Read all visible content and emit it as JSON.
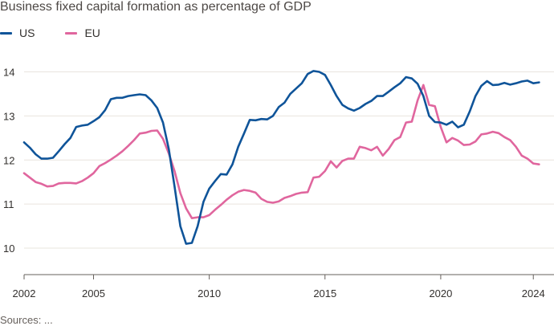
{
  "chart_data": {
    "type": "line",
    "title": "Business fixed capital formation as percentage of GDP",
    "xlabel": "",
    "ylabel": "",
    "xlim": [
      2002.0,
      2024.2
    ],
    "ylim": [
      9.4,
      14.5
    ],
    "y_ticks": [
      10,
      11,
      12,
      13,
      14
    ],
    "x_ticks": [
      2002,
      2005,
      2010,
      2015,
      2020,
      2024
    ],
    "grid": "horizontal",
    "legend_position": "top-left",
    "series": [
      {
        "name": "US",
        "color": "#0f5499",
        "x": [
          2002.0,
          2002.25,
          2002.5,
          2002.75,
          2003.0,
          2003.25,
          2003.5,
          2003.75,
          2004.0,
          2004.25,
          2004.5,
          2004.75,
          2005.0,
          2005.25,
          2005.5,
          2005.75,
          2006.0,
          2006.25,
          2006.5,
          2006.75,
          2007.0,
          2007.25,
          2007.5,
          2007.75,
          2008.0,
          2008.25,
          2008.5,
          2008.75,
          2009.0,
          2009.25,
          2009.5,
          2009.75,
          2010.0,
          2010.25,
          2010.5,
          2010.75,
          2011.0,
          2011.25,
          2011.5,
          2011.75,
          2012.0,
          2012.25,
          2012.5,
          2012.75,
          2013.0,
          2013.25,
          2013.5,
          2013.75,
          2014.0,
          2014.25,
          2014.5,
          2014.75,
          2015.0,
          2015.25,
          2015.5,
          2015.75,
          2016.0,
          2016.25,
          2016.5,
          2016.75,
          2017.0,
          2017.25,
          2017.5,
          2017.75,
          2018.0,
          2018.25,
          2018.5,
          2018.75,
          2019.0,
          2019.25,
          2019.5,
          2019.75,
          2020.0,
          2020.25,
          2020.5,
          2020.75,
          2021.0,
          2021.25,
          2021.5,
          2021.75,
          2022.0,
          2022.25,
          2022.5,
          2022.75,
          2023.0,
          2023.25,
          2023.5,
          2023.75,
          2024.0,
          2024.25
        ],
        "values": [
          12.4,
          12.28,
          12.13,
          12.03,
          12.03,
          12.05,
          12.2,
          12.36,
          12.5,
          12.75,
          12.78,
          12.8,
          12.88,
          12.97,
          13.13,
          13.38,
          13.41,
          13.41,
          13.45,
          13.47,
          13.49,
          13.47,
          13.35,
          13.18,
          12.85,
          12.25,
          11.4,
          10.5,
          10.1,
          10.12,
          10.5,
          11.05,
          11.35,
          11.52,
          11.68,
          11.67,
          11.9,
          12.3,
          12.6,
          12.91,
          12.9,
          12.93,
          12.92,
          13.0,
          13.2,
          13.3,
          13.5,
          13.62,
          13.74,
          13.95,
          14.02,
          14.0,
          13.93,
          13.7,
          13.45,
          13.25,
          13.17,
          13.12,
          13.18,
          13.27,
          13.34,
          13.45,
          13.45,
          13.55,
          13.65,
          13.74,
          13.88,
          13.85,
          13.73,
          13.45,
          13.0,
          12.86,
          12.85,
          12.8,
          12.87,
          12.74,
          12.8,
          13.1,
          13.45,
          13.68,
          13.79,
          13.7,
          13.71,
          13.75,
          13.71,
          13.74,
          13.78,
          13.8,
          13.74,
          13.76
        ]
      },
      {
        "name": "EU",
        "color": "#e0669e",
        "x": [
          2002.0,
          2002.25,
          2002.5,
          2002.75,
          2003.0,
          2003.25,
          2003.5,
          2003.75,
          2004.0,
          2004.25,
          2004.5,
          2004.75,
          2005.0,
          2005.25,
          2005.5,
          2005.75,
          2006.0,
          2006.25,
          2006.5,
          2006.75,
          2007.0,
          2007.25,
          2007.5,
          2007.75,
          2008.0,
          2008.25,
          2008.5,
          2008.75,
          2009.0,
          2009.25,
          2009.5,
          2009.75,
          2010.0,
          2010.25,
          2010.5,
          2010.75,
          2011.0,
          2011.25,
          2011.5,
          2011.75,
          2012.0,
          2012.25,
          2012.5,
          2012.75,
          2013.0,
          2013.25,
          2013.5,
          2013.75,
          2014.0,
          2014.25,
          2014.5,
          2014.75,
          2015.0,
          2015.25,
          2015.5,
          2015.75,
          2016.0,
          2016.25,
          2016.5,
          2016.75,
          2017.0,
          2017.25,
          2017.5,
          2017.75,
          2018.0,
          2018.25,
          2018.5,
          2018.75,
          2019.0,
          2019.25,
          2019.5,
          2019.75,
          2020.0,
          2020.25,
          2020.5,
          2020.75,
          2021.0,
          2021.25,
          2021.5,
          2021.75,
          2022.0,
          2022.25,
          2022.5,
          2022.75,
          2023.0,
          2023.25,
          2023.5,
          2023.75,
          2024.0,
          2024.25
        ],
        "values": [
          11.7,
          11.6,
          11.5,
          11.46,
          11.4,
          11.41,
          11.47,
          11.48,
          11.48,
          11.47,
          11.52,
          11.6,
          11.7,
          11.86,
          11.93,
          12.01,
          12.1,
          12.2,
          12.32,
          12.45,
          12.6,
          12.62,
          12.66,
          12.67,
          12.48,
          12.15,
          11.75,
          11.25,
          10.9,
          10.68,
          10.7,
          10.7,
          10.75,
          10.87,
          10.98,
          11.1,
          11.2,
          11.28,
          11.32,
          11.3,
          11.26,
          11.12,
          11.05,
          11.03,
          11.06,
          11.14,
          11.18,
          11.23,
          11.26,
          11.27,
          11.6,
          11.62,
          11.75,
          11.97,
          11.83,
          11.98,
          12.03,
          12.03,
          12.3,
          12.27,
          12.22,
          12.3,
          12.1,
          12.25,
          12.45,
          12.52,
          12.85,
          12.87,
          13.35,
          13.7,
          13.25,
          13.22,
          12.75,
          12.4,
          12.5,
          12.44,
          12.34,
          12.35,
          12.42,
          12.58,
          12.6,
          12.64,
          12.61,
          12.52,
          12.45,
          12.3,
          12.1,
          12.03,
          11.92,
          11.9
        ]
      }
    ]
  },
  "footer": {
    "source_text": "Sources: ..."
  }
}
